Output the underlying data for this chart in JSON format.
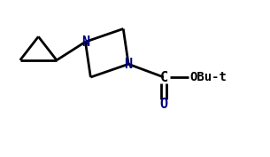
{
  "bg_color": "#ffffff",
  "line_color": "#000000",
  "N_color": "#cc8800",
  "O_color": "#cc8800",
  "N_text_color": "#000080",
  "O_text_color": "#000080",
  "bond_lw": 2.0,
  "font_size_atom": 11,
  "font_size_label": 10,
  "xlim": [
    0,
    10
  ],
  "ylim": [
    0,
    6
  ],
  "figw": 3.05,
  "figh": 1.77,
  "dpi": 100
}
